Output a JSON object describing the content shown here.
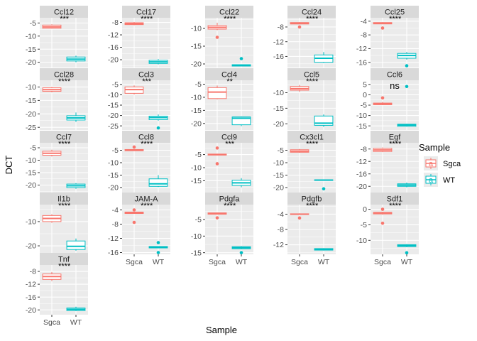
{
  "chart_data": {
    "type": "boxplot",
    "xlabel": "Sample",
    "ylabel": "DCT",
    "categories": [
      "Sgca",
      "WT"
    ],
    "legend": {
      "title": "Sample",
      "placement": "right",
      "entries": [
        {
          "name": "Sgca",
          "color": "#F8766D"
        },
        {
          "name": "WT",
          "color": "#00BFC4"
        }
      ],
      "key_glyph": "a"
    },
    "colors": {
      "Sgca": "#F8766D",
      "WT": "#00BFC4",
      "panel_bg": "#EBEBEB",
      "strip_bg": "#D9D9D9"
    },
    "panels": [
      {
        "name": "Ccl12",
        "ylim": [
          -22,
          -3
        ],
        "ticks": [
          -5,
          -10,
          -15,
          -20
        ],
        "sig": "***",
        "boxes": [
          {
            "group": "Sgca",
            "q1": -7,
            "med": -6.5,
            "q3": -5.8,
            "min": -7.2,
            "max": -5.5,
            "outliers": []
          },
          {
            "group": "WT",
            "q1": -19.5,
            "med": -18.8,
            "q3": -18,
            "min": -20,
            "max": -17.5,
            "outliers": []
          }
        ]
      },
      {
        "name": "Ccl17",
        "ylim": [
          -22.5,
          -6.5
        ],
        "ticks": [
          -8,
          -12,
          -16,
          -20
        ],
        "sig": "****",
        "boxes": [
          {
            "group": "Sgca",
            "q1": -8.7,
            "med": -8.4,
            "q3": -8.1,
            "min": -8.9,
            "max": -7.9,
            "outliers": []
          },
          {
            "group": "WT",
            "q1": -21.2,
            "med": -20.7,
            "q3": -20.2,
            "min": -21.5,
            "max": -19.8,
            "outliers": []
          }
        ]
      },
      {
        "name": "Ccl22",
        "ylim": [
          -21,
          -7
        ],
        "ticks": [
          -10,
          -15,
          -20
        ],
        "sig": "****",
        "boxes": [
          {
            "group": "Sgca",
            "q1": -10.2,
            "med": -9.7,
            "q3": -9.2,
            "min": -10.5,
            "max": -8.4,
            "outliers": [
              -12.5
            ]
          },
          {
            "group": "WT",
            "q1": -20.6,
            "med": -20.4,
            "q3": -20.2,
            "min": -20.7,
            "max": -20.1,
            "outliers": [
              -18.5
            ]
          }
        ]
      },
      {
        "name": "Ccl24",
        "ylim": [
          -19,
          -5.5
        ],
        "ticks": [
          -8,
          -12,
          -16
        ],
        "sig": "****",
        "boxes": [
          {
            "group": "Sgca",
            "q1": -7.2,
            "med": -7,
            "q3": -6.8,
            "min": -7.3,
            "max": -6.7,
            "outliers": [
              -8
            ]
          },
          {
            "group": "WT",
            "q1": -17.6,
            "med": -16.5,
            "q3": -15.6,
            "min": -17.8,
            "max": -14.8,
            "outliers": []
          }
        ]
      },
      {
        "name": "Ccl25",
        "ylim": [
          -17.5,
          -3
        ],
        "ticks": [
          -4,
          -8,
          -12,
          -16
        ],
        "sig": "****",
        "boxes": [
          {
            "group": "Sgca",
            "q1": -4.8,
            "med": -4.6,
            "q3": -4.4,
            "min": -4.9,
            "max": -4.3,
            "outliers": [
              -6
            ]
          },
          {
            "group": "WT",
            "q1": -14.8,
            "med": -14,
            "q3": -13.4,
            "min": -15.2,
            "max": -13,
            "outliers": [
              -17
            ]
          }
        ]
      },
      {
        "name": "Ccl28",
        "ylim": [
          -26,
          -7.5
        ],
        "ticks": [
          -10,
          -15,
          -20,
          -25
        ],
        "sig": "****",
        "boxes": [
          {
            "group": "Sgca",
            "q1": -11.6,
            "med": -11,
            "q3": -10.3,
            "min": -12,
            "max": -10,
            "outliers": []
          },
          {
            "group": "WT",
            "q1": -22.3,
            "med": -21.5,
            "q3": -20.7,
            "min": -23,
            "max": -19.5,
            "outliers": []
          }
        ]
      },
      {
        "name": "Ccl3",
        "ylim": [
          -27,
          -3
        ],
        "ticks": [
          -5,
          -10,
          -15,
          -20,
          -25
        ],
        "sig": "***",
        "boxes": [
          {
            "group": "Sgca",
            "q1": -9.3,
            "med": -7.5,
            "q3": -6.2,
            "min": -9.8,
            "max": -5.5,
            "outliers": []
          },
          {
            "group": "WT",
            "q1": -22,
            "med": -21,
            "q3": -20.3,
            "min": -22.5,
            "max": -19.5,
            "outliers": [
              -26
            ]
          }
        ]
      },
      {
        "name": "Ccl4",
        "ylim": [
          -22.5,
          -3.5
        ],
        "ticks": [
          -5,
          -10,
          -15,
          -20
        ],
        "sig": "**",
        "boxes": [
          {
            "group": "Sgca",
            "q1": -10.5,
            "med": -8,
            "q3": -6.3,
            "min": -10.8,
            "max": -5.5,
            "outliers": []
          },
          {
            "group": "WT",
            "q1": -20.5,
            "med": -18,
            "q3": -17.5,
            "min": -21,
            "max": -17.3,
            "outliers": []
          }
        ]
      },
      {
        "name": "Ccl5",
        "ylim": [
          -22,
          -6
        ],
        "ticks": [
          -10,
          -15,
          -20
        ],
        "sig": "****",
        "boxes": [
          {
            "group": "Sgca",
            "q1": -9.2,
            "med": -8.7,
            "q3": -8,
            "min": -9.7,
            "max": -7.5,
            "outliers": []
          },
          {
            "group": "WT",
            "q1": -20.5,
            "med": -19.8,
            "q3": -17.5,
            "min": -21,
            "max": -17,
            "outliers": []
          }
        ]
      },
      {
        "name": "Ccl6",
        "ylim": [
          -17,
          7
        ],
        "ticks": [
          5,
          0,
          -5,
          -10,
          -15
        ],
        "sig": "ns",
        "boxes": [
          {
            "group": "Sgca",
            "q1": -4.8,
            "med": -4.5,
            "q3": -4,
            "min": -5,
            "max": -3.5,
            "outliers": [
              -1.5
            ]
          },
          {
            "group": "WT",
            "q1": -15.2,
            "med": -14.6,
            "q3": -14.2,
            "min": -15.4,
            "max": -14,
            "outliers": [
              4
            ]
          }
        ]
      },
      {
        "name": "Ccl7",
        "ylim": [
          -23,
          -3
        ],
        "ticks": [
          -5,
          -10,
          -15,
          -20
        ],
        "sig": "****",
        "boxes": [
          {
            "group": "Sgca",
            "q1": -8,
            "med": -7.2,
            "q3": -6.4,
            "min": -8.5,
            "max": -5.8,
            "outliers": []
          },
          {
            "group": "WT",
            "q1": -21,
            "med": -20.3,
            "q3": -19.6,
            "min": -21.5,
            "max": -19.2,
            "outliers": []
          }
        ]
      },
      {
        "name": "Ccl8",
        "ylim": [
          -22,
          -2
        ],
        "ticks": [
          -5,
          -10,
          -15,
          -20
        ],
        "sig": "****",
        "boxes": [
          {
            "group": "Sgca",
            "q1": -5.2,
            "med": -5,
            "q3": -4.7,
            "min": -5.3,
            "max": -4.5,
            "outliers": [
              -3.7
            ]
          },
          {
            "group": "WT",
            "q1": -19.5,
            "med": -18.5,
            "q3": -16.5,
            "min": -19.8,
            "max": -15,
            "outliers": []
          }
        ]
      },
      {
        "name": "Ccl9",
        "ylim": [
          -19.5,
          -0.5
        ],
        "ticks": [
          -5,
          -10,
          -15
        ],
        "sig": "***",
        "boxes": [
          {
            "group": "Sgca",
            "q1": -5.2,
            "med": -5,
            "q3": -4.8,
            "min": -5.3,
            "max": -4.7,
            "outliers": [
              -2.5,
              -8.5
            ]
          },
          {
            "group": "WT",
            "q1": -16.8,
            "med": -15.8,
            "q3": -14.8,
            "min": -17.5,
            "max": -14,
            "outliers": []
          }
        ]
      },
      {
        "name": "Cx3cl1",
        "ylim": [
          -22,
          -2
        ],
        "ticks": [
          -5,
          -10,
          -15,
          -20
        ],
        "sig": "****",
        "boxes": [
          {
            "group": "Sgca",
            "q1": -5.8,
            "med": -5.4,
            "q3": -4.8,
            "min": -6,
            "max": -4.5,
            "outliers": []
          },
          {
            "group": "WT",
            "q1": -17.1,
            "med": -17,
            "q3": -16.9,
            "min": -17.2,
            "max": -16.8,
            "outliers": [
              -20.5
            ]
          }
        ]
      },
      {
        "name": "Egf",
        "ylim": [
          -22,
          -6
        ],
        "ticks": [
          -8,
          -12,
          -16,
          -20
        ],
        "sig": "****",
        "boxes": [
          {
            "group": "Sgca",
            "q1": -8.8,
            "med": -8.3,
            "q3": -7.8,
            "min": -9,
            "max": -7.5,
            "outliers": []
          },
          {
            "group": "WT",
            "q1": -20,
            "med": -19.6,
            "q3": -19.2,
            "min": -20.3,
            "max": -18.8,
            "outliers": []
          }
        ]
      },
      {
        "name": "Il1b",
        "ylim": [
          -23.5,
          -3
        ],
        "ticks": [
          -10,
          -20
        ],
        "sig": "****",
        "boxes": [
          {
            "group": "Sgca",
            "q1": -10,
            "med": -8.7,
            "q3": -7.5,
            "min": -10.5,
            "max": -7,
            "outliers": []
          },
          {
            "group": "WT",
            "q1": -21.5,
            "med": -20.2,
            "q3": -18,
            "min": -22,
            "max": -17,
            "outliers": []
          }
        ]
      },
      {
        "name": "JAM-A",
        "ylim": [
          -16.5,
          -2.5
        ],
        "ticks": [
          -4,
          -8,
          -12,
          -16
        ],
        "sig": "****",
        "boxes": [
          {
            "group": "Sgca",
            "q1": -5,
            "med": -4.8,
            "q3": -4.6,
            "min": -5.1,
            "max": -4.5,
            "outliers": [
              -4,
              -7.5
            ]
          },
          {
            "group": "WT",
            "q1": -14.7,
            "med": -14.5,
            "q3": -14.3,
            "min": -14.8,
            "max": -14.2,
            "outliers": [
              -13.2,
              -16
            ]
          }
        ]
      },
      {
        "name": "Pdgfa",
        "ylim": [
          -15.5,
          -0.5
        ],
        "ticks": [
          -5,
          -10,
          -15
        ],
        "sig": "****",
        "boxes": [
          {
            "group": "Sgca",
            "q1": -3.4,
            "med": -3.2,
            "q3": -3,
            "min": -3.5,
            "max": -2.9,
            "outliers": [
              -4.5
            ]
          },
          {
            "group": "WT",
            "q1": -13.8,
            "med": -13.5,
            "q3": -13.2,
            "min": -14,
            "max": -13,
            "outliers": [
              -15
            ]
          }
        ]
      },
      {
        "name": "Pdgfb",
        "ylim": [
          -14.5,
          -1.5
        ],
        "ticks": [
          -4,
          -8,
          -12
        ],
        "sig": "****",
        "boxes": [
          {
            "group": "Sgca",
            "q1": -4.1,
            "med": -4,
            "q3": -3.9,
            "min": -4.2,
            "max": -3.8,
            "outliers": [
              -5
            ]
          },
          {
            "group": "WT",
            "q1": -13.4,
            "med": -13.2,
            "q3": -13,
            "min": -13.5,
            "max": -12.9,
            "outliers": []
          }
        ]
      },
      {
        "name": "Sdf1",
        "ylim": [
          -14.5,
          1.5
        ],
        "ticks": [
          0,
          -5,
          -10
        ],
        "sig": "****",
        "boxes": [
          {
            "group": "Sgca",
            "q1": -1.5,
            "med": -1.2,
            "q3": -1,
            "min": -1.7,
            "max": -0.8,
            "outliers": [
              0,
              -4.5
            ]
          },
          {
            "group": "WT",
            "q1": -12,
            "med": -11.7,
            "q3": -11.4,
            "min": -12.2,
            "max": -11.2,
            "outliers": [
              -14
            ]
          }
        ]
      },
      {
        "name": "Tnf",
        "ylim": [
          -21.5,
          -6
        ],
        "ticks": [
          -8,
          -12,
          -16,
          -20
        ],
        "sig": "****",
        "boxes": [
          {
            "group": "Sgca",
            "q1": -10.5,
            "med": -9.6,
            "q3": -8.8,
            "min": -11,
            "max": -8.2,
            "outliers": []
          },
          {
            "group": "WT",
            "q1": -20.2,
            "med": -19.8,
            "q3": -19.4,
            "min": -20.4,
            "max": -19,
            "outliers": []
          }
        ]
      }
    ]
  }
}
